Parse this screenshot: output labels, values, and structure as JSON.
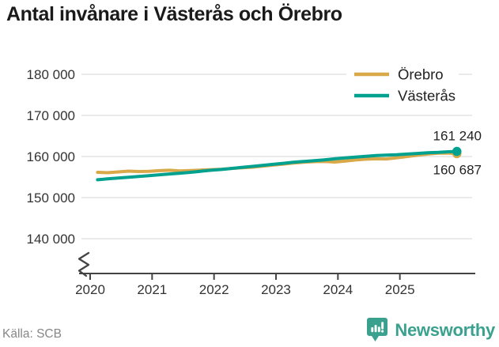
{
  "title": "Antal invånare i Västerås och Örebro",
  "source": "Källa: SCB",
  "branding": {
    "name": "Newsworthy",
    "icon": "newsworthy-bubble-chart-icon",
    "color": "#3aa18f"
  },
  "chart_data": {
    "type": "line",
    "title": "Antal invånare i Västerås och Örebro",
    "xlabel": "",
    "ylabel": "",
    "x_tick_labels": [
      "2020",
      "2021",
      "2022",
      "2023",
      "2024",
      "2025"
    ],
    "x_tick_values": [
      2020,
      2021,
      2022,
      2023,
      2024,
      2025
    ],
    "y_tick_labels": [
      "180 000",
      "170 000",
      "160 000",
      "150 000",
      "140 000"
    ],
    "y_tick_values": [
      180000,
      170000,
      160000,
      150000,
      140000
    ],
    "ylim_display": [
      140000,
      180000
    ],
    "axis_break": true,
    "grid": "horizontal",
    "gridline_color": "#e3e3e3",
    "axis_color": "#444444",
    "legend_position": "top-right",
    "x": [
      2020.12,
      2020.28,
      2020.45,
      2020.62,
      2020.78,
      2020.95,
      2021.12,
      2021.28,
      2021.45,
      2021.62,
      2021.78,
      2021.95,
      2022.12,
      2022.28,
      2022.45,
      2022.62,
      2022.78,
      2022.95,
      2023.12,
      2023.28,
      2023.45,
      2023.62,
      2023.78,
      2023.95,
      2024.12,
      2024.28,
      2024.45,
      2024.62,
      2024.78,
      2024.95,
      2025.12,
      2025.28,
      2025.45,
      2025.62,
      2025.78,
      2025.92
    ],
    "series": [
      {
        "name": "Örebro",
        "color": "#d9a849",
        "end_value": 160687,
        "end_label": "160 687",
        "end_label_position": "below",
        "values": [
          156150,
          156050,
          156250,
          156450,
          156350,
          156400,
          156550,
          156650,
          156500,
          156600,
          156700,
          156800,
          156900,
          157100,
          157250,
          157400,
          157650,
          157900,
          158150,
          158400,
          158600,
          158750,
          158800,
          158650,
          158900,
          159150,
          159350,
          159450,
          159400,
          159700,
          160000,
          160300,
          160600,
          160800,
          160850,
          160687
        ]
      },
      {
        "name": "Västerås",
        "color": "#00a18f",
        "end_value": 161240,
        "end_label": "161 240",
        "end_label_position": "above",
        "values": [
          154350,
          154550,
          154750,
          154950,
          155150,
          155350,
          155550,
          155750,
          155950,
          156150,
          156400,
          156650,
          156850,
          157100,
          157350,
          157600,
          157850,
          158100,
          158350,
          158600,
          158800,
          159000,
          159200,
          159450,
          159650,
          159850,
          160050,
          160250,
          160350,
          160450,
          160600,
          160750,
          160900,
          161000,
          161150,
          161240
        ]
      }
    ]
  }
}
